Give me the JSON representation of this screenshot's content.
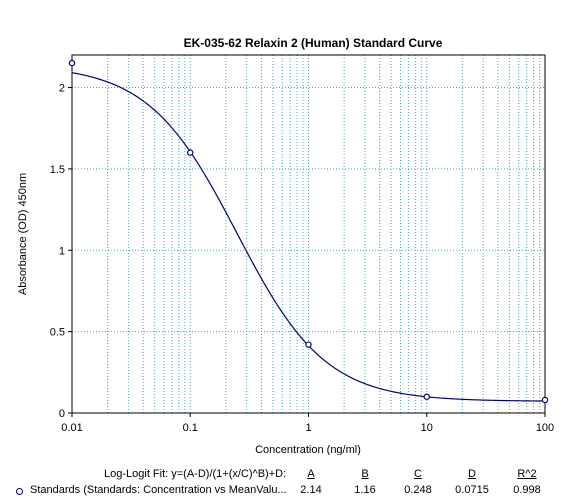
{
  "chart_data": {
    "type": "line",
    "title": "EK-035-62 Relaxin 2 (Human) Standard Curve",
    "xlabel": "Concentration (ng/ml)",
    "ylabel": "Absorbance (OD) 450nm",
    "xscale": "log",
    "xlim": [
      0.01,
      100
    ],
    "ylim": [
      0,
      2.2
    ],
    "x_ticks": [
      0.01,
      0.1,
      1,
      10,
      100
    ],
    "x_tick_labels": [
      "0.01",
      "0.1",
      "1",
      "10",
      "100"
    ],
    "y_ticks": [
      0,
      0.5,
      1,
      1.5,
      2
    ],
    "y_tick_labels": [
      "0",
      "0.5",
      "1",
      "1.5",
      "2"
    ],
    "grid": true,
    "colors": {
      "curve": "#000080",
      "grid": "#44a8c8",
      "marker": "#000080"
    },
    "series": [
      {
        "name": "Standards (Standards: Concentration vs MeanValu...",
        "x": [
          0.01,
          0.1,
          1,
          10,
          100
        ],
        "values": [
          2.15,
          1.6,
          0.42,
          0.1,
          0.08
        ]
      }
    ],
    "fit": {
      "A": 2.14,
      "B": 1.16,
      "C": 0.248,
      "D": 0.0715
    }
  },
  "fit_table": {
    "label": "Log-Logit Fit: y=(A-D)/(1+(x/C)^B)+D:",
    "headers": [
      "A",
      "B",
      "C",
      "D",
      "R^2"
    ],
    "row_name": "Standards (Standards: Concentration vs MeanValu...",
    "values": [
      "2.14",
      "1.16",
      "0.248",
      "0.0715",
      "0.998"
    ]
  }
}
